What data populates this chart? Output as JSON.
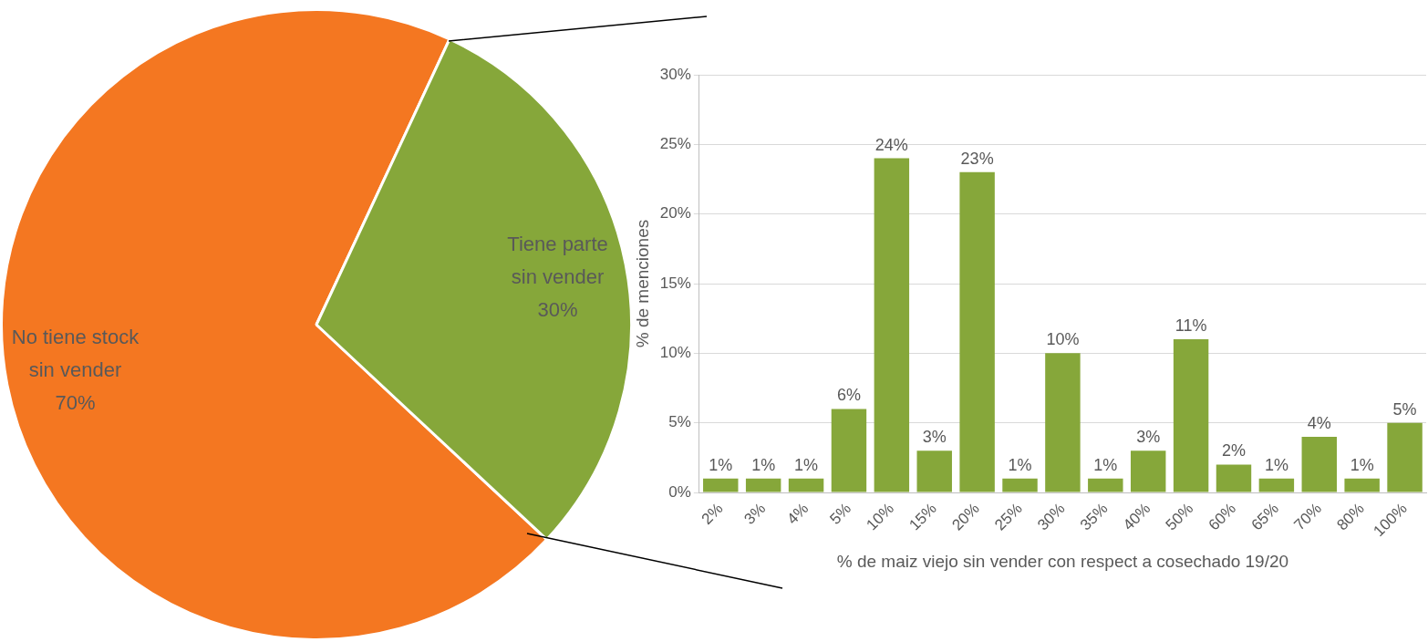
{
  "chart_data": [
    {
      "type": "pie",
      "categories": [
        "No tiene stock sin vender",
        "Tiene parte sin vender"
      ],
      "values": [
        70,
        30
      ],
      "colors": [
        "#f47721",
        "#86a73a"
      ],
      "value_labels": [
        "70%",
        "30%"
      ]
    },
    {
      "type": "bar",
      "categories": [
        "2%",
        "3%",
        "4%",
        "5%",
        "10%",
        "15%",
        "20%",
        "25%",
        "30%",
        "35%",
        "40%",
        "50%",
        "60%",
        "65%",
        "70%",
        "80%",
        "100%"
      ],
      "values": [
        1,
        1,
        1,
        6,
        24,
        3,
        23,
        1,
        10,
        1,
        3,
        11,
        2,
        1,
        4,
        1,
        5
      ],
      "color": "#86a73a",
      "value_labels": [
        "1%",
        "1%",
        "1%",
        "6%",
        "24%",
        "3%",
        "23%",
        "1%",
        "10%",
        "1%",
        "3%",
        "11%",
        "2%",
        "1%",
        "4%",
        "1%",
        "5%"
      ],
      "ylim": [
        0,
        30
      ],
      "yticks": [
        {
          "value": 0,
          "label": "0%"
        },
        {
          "value": 5,
          "label": "5%"
        },
        {
          "value": 10,
          "label": "10%"
        },
        {
          "value": 15,
          "label": "15%"
        },
        {
          "value": 20,
          "label": "20%"
        },
        {
          "value": 25,
          "label": "25%"
        },
        {
          "value": 30,
          "label": "30%"
        }
      ],
      "grid": "y",
      "xlabel": "% de maiz viejo sin vender con respect a cosechado 19/20",
      "ylabel": "% de menciones"
    }
  ]
}
